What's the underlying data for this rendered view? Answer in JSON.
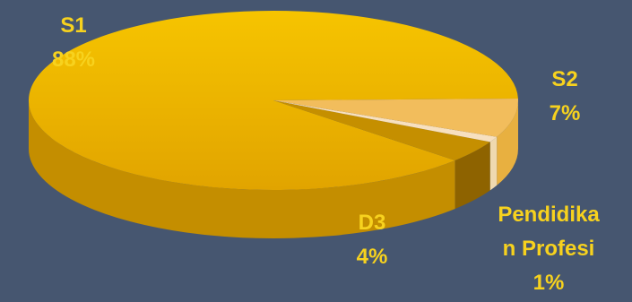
{
  "chart_data": {
    "type": "pie",
    "style": "3d",
    "title": "",
    "slices": [
      {
        "name": "S1",
        "value": 88,
        "label": "88%",
        "color": "#e9ad00"
      },
      {
        "name": "S2",
        "value": 7,
        "label": "7%",
        "color": "#f2bd5c"
      },
      {
        "name": "Pendidikan Profesi",
        "display_name": "Pendidika n Profesi",
        "value": 1,
        "label": "1%",
        "color": "#f7e0bf"
      },
      {
        "name": "D3",
        "value": 4,
        "label": "4%",
        "color": "#c58f00"
      }
    ],
    "label_color": "#f7d21e",
    "background": "#465670"
  }
}
